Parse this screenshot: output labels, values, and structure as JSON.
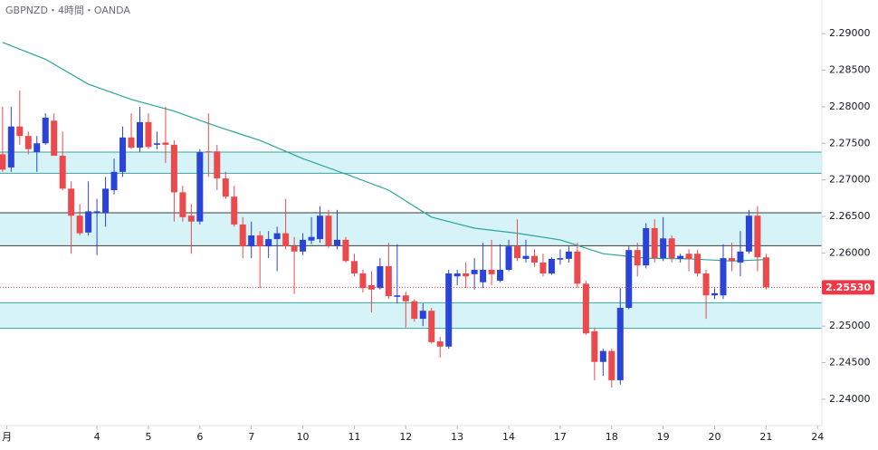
{
  "chart_data": {
    "type": "candlestick",
    "title": "GBPNZD・4時間・OANDA",
    "up_color": "#2a44d8",
    "down_color": "#ea4a4d",
    "open": [
      2.2735,
      2.2717,
      2.2773,
      2.276,
      2.2738,
      2.275,
      2.2781,
      2.2733,
      2.2688,
      2.2651,
      2.2628,
      2.2655,
      2.2655,
      2.2686,
      2.2711,
      2.2758,
      2.2744,
      2.2779,
      2.2748,
      2.2751,
      2.2748,
      2.2683,
      2.2651,
      2.2643,
      2.2739,
      2.2739,
      2.2702,
      2.2677,
      2.2639,
      2.2609,
      2.2624,
      2.2609,
      2.2619,
      2.2627,
      2.2609,
      2.2602,
      2.2617,
      2.2619,
      2.2651,
      2.261,
      2.2618,
      2.2589,
      2.2572,
      2.2556,
      2.2552,
      2.2582,
      2.254,
      2.2542,
      2.2534,
      2.251,
      2.2521,
      2.2479,
      2.2472,
      2.2568,
      2.2572,
      2.2571,
      2.256,
      2.2577,
      2.2562,
      2.2577,
      2.2609,
      2.2592,
      2.2596,
      2.2587,
      2.2572,
      2.2591,
      2.2592,
      2.2602,
      2.2558,
      2.2493,
      2.2451,
      2.2466,
      2.2426,
      2.2525,
      2.2604,
      2.2583,
      2.2634,
      2.2593,
      2.262,
      2.2592,
      2.2599,
      2.2599,
      2.2572,
      2.2542,
      2.2542,
      2.2593,
      2.2587,
      2.2602,
      2.2651,
      2.2594
    ],
    "high": [
      2.28,
      2.28,
      2.2822,
      2.2766,
      2.276,
      2.2791,
      2.2791,
      2.2766,
      2.2698,
      2.2667,
      2.2698,
      2.2674,
      2.2704,
      2.2729,
      2.2773,
      2.2791,
      2.28,
      2.2791,
      2.2766,
      2.28,
      2.2754,
      2.2692,
      2.2667,
      2.2742,
      2.2791,
      2.2748,
      2.2711,
      2.2692,
      2.2649,
      2.2643,
      2.263,
      2.263,
      2.2636,
      2.2674,
      2.2622,
      2.2627,
      2.2649,
      2.2664,
      2.2659,
      2.2659,
      2.2622,
      2.2599,
      2.2577,
      2.2575,
      2.2593,
      2.2614,
      2.2612,
      2.2547,
      2.2537,
      2.2531,
      2.2525,
      2.2485,
      2.2577,
      2.2577,
      2.2587,
      2.2593,
      2.2614,
      2.2618,
      2.2612,
      2.2618,
      2.2646,
      2.2618,
      2.2605,
      2.2599,
      2.2594,
      2.2605,
      2.2609,
      2.2614,
      2.2562,
      2.2498,
      2.2469,
      2.2469,
      2.2552,
      2.2609,
      2.2614,
      2.2641,
      2.2646,
      2.2649,
      2.2624,
      2.2599,
      2.2605,
      2.2604,
      2.2577,
      2.2552,
      2.2612,
      2.2614,
      2.263,
      2.2659,
      2.2664,
      2.2599
    ],
    "low": [
      2.2711,
      2.2711,
      2.2748,
      2.2735,
      2.2711,
      2.2748,
      2.2733,
      2.2686,
      2.2599,
      2.2624,
      2.2624,
      2.2597,
      2.2636,
      2.268,
      2.2704,
      2.2742,
      2.2738,
      2.2742,
      2.2742,
      2.2723,
      2.2643,
      2.2643,
      2.2599,
      2.2639,
      2.2704,
      2.2686,
      2.2674,
      2.2636,
      2.2593,
      2.2593,
      2.2552,
      2.2593,
      2.2575,
      2.2605,
      2.2544,
      2.2597,
      2.2612,
      2.2614,
      2.2607,
      2.2605,
      2.2587,
      2.2568,
      2.2546,
      2.2519,
      2.255,
      2.2537,
      2.2531,
      2.2498,
      2.2506,
      2.25,
      2.2476,
      2.2457,
      2.2469,
      2.2556,
      2.2552,
      2.255,
      2.2552,
      2.2556,
      2.256,
      2.2575,
      2.2589,
      2.2587,
      2.2581,
      2.2568,
      2.257,
      2.2584,
      2.2587,
      2.2552,
      2.2488,
      2.2426,
      2.2432,
      2.2416,
      2.242,
      2.2523,
      2.2568,
      2.2579,
      2.2587,
      2.2589,
      2.2587,
      2.2587,
      2.2575,
      2.2568,
      2.251,
      2.2537,
      2.2537,
      2.2575,
      2.2568,
      2.2599,
      2.2575,
      2.255
    ],
    "close": [
      2.2714,
      2.2773,
      2.276,
      2.2742,
      2.275,
      2.2785,
      2.2733,
      2.2688,
      2.2651,
      2.2627,
      2.2657,
      2.2657,
      2.2688,
      2.2711,
      2.2758,
      2.2744,
      2.2779,
      2.2745,
      2.275,
      2.2748,
      2.2683,
      2.2649,
      2.2643,
      2.2738,
      2.2738,
      2.2702,
      2.2677,
      2.2639,
      2.2609,
      2.2624,
      2.2609,
      2.2619,
      2.2627,
      2.2609,
      2.2602,
      2.2618,
      2.2622,
      2.2651,
      2.261,
      2.2618,
      2.2589,
      2.2572,
      2.2552,
      2.255,
      2.2582,
      2.2541,
      2.2542,
      2.2534,
      2.251,
      2.2521,
      2.2478,
      2.2472,
      2.2572,
      2.2572,
      2.2568,
      2.2577,
      2.2577,
      2.2571,
      2.2577,
      2.2609,
      2.2593,
      2.2596,
      2.2587,
      2.2572,
      2.2592,
      2.2593,
      2.2602,
      2.2558,
      2.249,
      2.2451,
      2.2466,
      2.2426,
      2.2525,
      2.2604,
      2.2583,
      2.2634,
      2.2593,
      2.262,
      2.2593,
      2.2596,
      2.2592,
      2.2572,
      2.2542,
      2.2545,
      2.2593,
      2.2589,
      2.2602,
      2.2651,
      2.2594,
      2.2553
    ],
    "moving_average": {
      "color": "#2aa597",
      "x": [
        0,
        5,
        10,
        15,
        20,
        25,
        30,
        35,
        40,
        45,
        50,
        55,
        60,
        65,
        70,
        75,
        80,
        85,
        89
      ],
      "values": [
        2.2888,
        2.2865,
        2.2831,
        2.281,
        2.2794,
        2.2773,
        2.2754,
        2.2729,
        2.2708,
        2.2686,
        2.2649,
        2.2634,
        2.2627,
        2.2618,
        2.2599,
        2.2593,
        2.2592,
        2.2589,
        2.2591
      ]
    },
    "zones": [
      {
        "from": 2.2709,
        "to": 2.2738,
        "fill": "#d6f3f7",
        "border": "#3aa39c"
      },
      {
        "from": 2.261,
        "to": 2.2655,
        "fill": "#d6f3f7",
        "border": "#3b3b3b"
      },
      {
        "from": 2.2497,
        "to": 2.2532,
        "fill": "#d6f3f7",
        "border": "#3aa39c"
      }
    ],
    "last_price": {
      "value": 2.2553,
      "label": "2.25530",
      "color": "#f23645"
    },
    "xlim": [
      -0.3,
      95.5
    ],
    "ylim": [
      2.2364,
      2.2946
    ],
    "xticks": [
      {
        "value": 0.5,
        "label": "月"
      },
      {
        "value": 11,
        "label": "4"
      },
      {
        "value": 17,
        "label": "5"
      },
      {
        "value": 23,
        "label": "6"
      },
      {
        "value": 29,
        "label": "7"
      },
      {
        "value": 35,
        "label": "10"
      },
      {
        "value": 41,
        "label": "11"
      },
      {
        "value": 47,
        "label": "12"
      },
      {
        "value": 53,
        "label": "13"
      },
      {
        "value": 59,
        "label": "14"
      },
      {
        "value": 65,
        "label": "17"
      },
      {
        "value": 71,
        "label": "18"
      },
      {
        "value": 77,
        "label": "19"
      },
      {
        "value": 83,
        "label": "20"
      },
      {
        "value": 89,
        "label": "21"
      },
      {
        "value": 95,
        "label": "24"
      }
    ],
    "yticks": [
      {
        "value": 2.24,
        "label": "2.24000"
      },
      {
        "value": 2.245,
        "label": "2.24500"
      },
      {
        "value": 2.25,
        "label": "2.25000"
      },
      {
        "value": 2.255,
        "label": "2.25500"
      },
      {
        "value": 2.26,
        "label": "2.26000"
      },
      {
        "value": 2.265,
        "label": "2.26500"
      },
      {
        "value": 2.27,
        "label": "2.27000"
      },
      {
        "value": 2.275,
        "label": "2.27500"
      },
      {
        "value": 2.28,
        "label": "2.28000"
      },
      {
        "value": 2.285,
        "label": "2.28500"
      },
      {
        "value": 2.29,
        "label": "2.29000"
      }
    ]
  }
}
